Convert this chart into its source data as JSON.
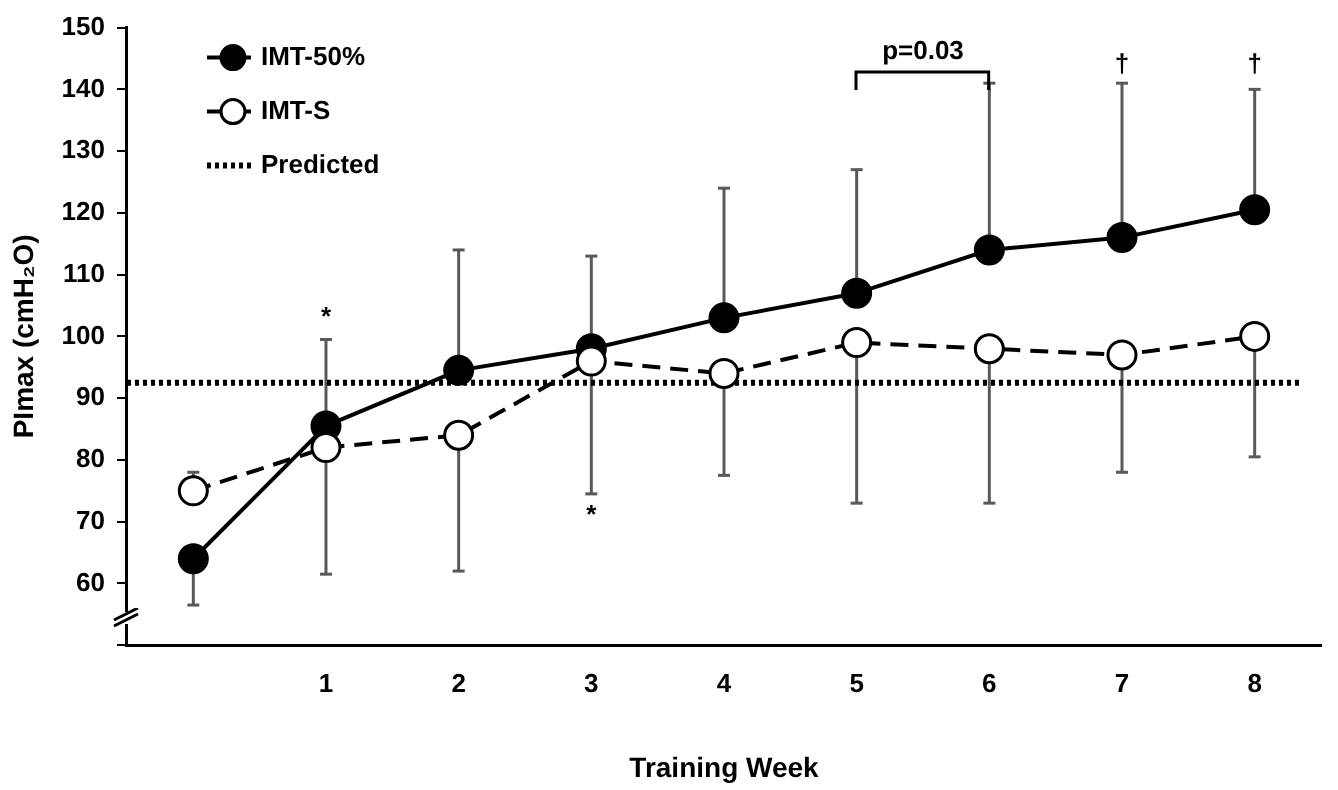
{
  "chart_data": {
    "type": "line",
    "xlabel": "Training Week",
    "ylabel": "PImax (cmH₂O)",
    "categories": [
      null,
      "1",
      "2",
      "3",
      "4",
      "5",
      "6",
      "7",
      "8"
    ],
    "ylim": [
      50,
      150
    ],
    "yticks": [
      {
        "value": 50,
        "label": null
      },
      60,
      70,
      80,
      90,
      100,
      110,
      120,
      130,
      140,
      150
    ],
    "grid": false,
    "legend": "top left",
    "marker": "circle",
    "series": [
      {
        "name": "IMT-50%",
        "color": "#000000",
        "line_style": "solid",
        "values": [
          64,
          85.5,
          94.5,
          98,
          103,
          107,
          114,
          116,
          120.5
        ],
        "errors": [
          [
            56.5,
            64
          ],
          [
            85.5,
            99.5
          ],
          [
            94.5,
            114
          ],
          [
            98,
            113
          ],
          [
            103,
            124
          ],
          [
            107,
            127
          ],
          [
            114,
            141
          ],
          [
            116,
            141
          ],
          [
            120.5,
            140
          ]
        ]
      },
      {
        "name": "IMT-S",
        "color": "#000000",
        "line_style": "dashed",
        "values": [
          75,
          82,
          84,
          96,
          94,
          99,
          98,
          97,
          100
        ],
        "errors": [
          [
            75,
            78
          ],
          [
            61.5,
            82
          ],
          [
            62,
            84
          ],
          [
            74.5,
            96
          ],
          [
            77.5,
            94
          ],
          [
            73,
            99
          ],
          [
            73,
            98
          ],
          [
            78,
            97
          ],
          [
            80.5,
            100
          ]
        ]
      }
    ],
    "ref_lines": [
      {
        "axis": "y",
        "value": 92.5,
        "label": "Predicted",
        "color": "#000000",
        "line_style": "dotted"
      }
    ],
    "annotations": [
      "*",
      "*",
      "p=0.03",
      "†",
      "†"
    ]
  }
}
